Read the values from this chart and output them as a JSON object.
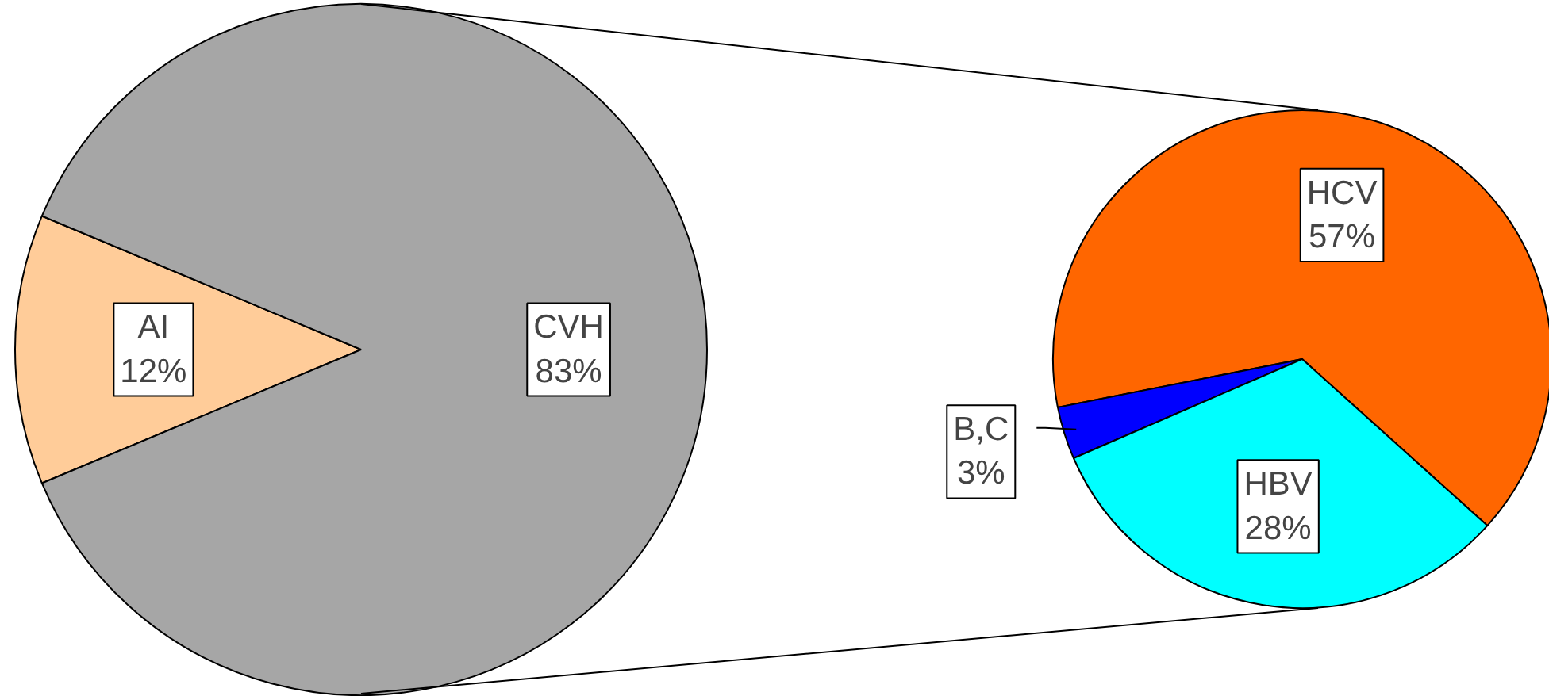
{
  "chart_data": [
    {
      "type": "pie",
      "categories": [
        "AI",
        "CVH"
      ],
      "values": [
        12,
        83
      ],
      "colors": [
        "#ffcc99",
        "#a6a6a6"
      ],
      "value_labels": [
        "12%",
        "83%"
      ]
    },
    {
      "type": "pie",
      "categories": [
        "HCV",
        "B,C",
        "HBV"
      ],
      "values": [
        57,
        3,
        28
      ],
      "colors": [
        "#ff6600",
        "#0000ff",
        "#00ffff"
      ],
      "value_labels": [
        "57%",
        "3%",
        "28%"
      ]
    }
  ]
}
